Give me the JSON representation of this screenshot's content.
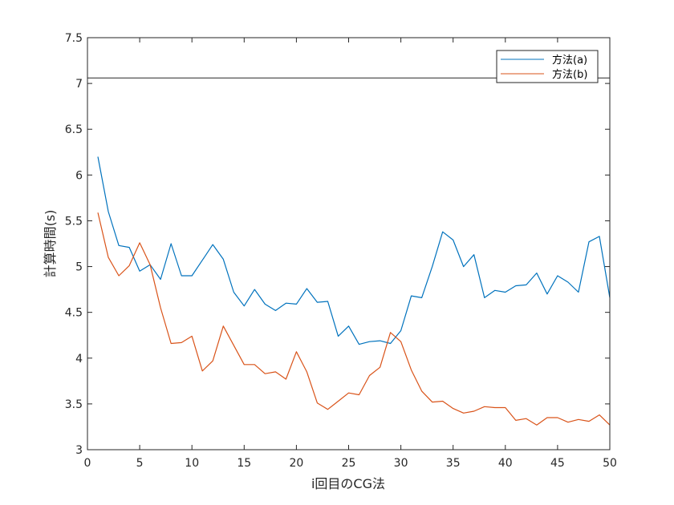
{
  "chart_data": {
    "type": "line",
    "title": "",
    "xlabel": "i回目のCG法",
    "ylabel": "計算時間(s)",
    "xlim": [
      0,
      50
    ],
    "ylim": [
      3,
      7.5
    ],
    "xticks": [
      0,
      5,
      10,
      15,
      20,
      25,
      30,
      35,
      40,
      45,
      50
    ],
    "yticks": [
      3,
      3.5,
      4,
      4.5,
      5,
      5.5,
      6,
      6.5,
      7,
      7.5
    ],
    "grid": false,
    "legend_position": "top-right",
    "x": [
      1,
      2,
      3,
      4,
      5,
      6,
      7,
      8,
      9,
      10,
      11,
      12,
      13,
      14,
      15,
      16,
      17,
      18,
      19,
      20,
      21,
      22,
      23,
      24,
      25,
      26,
      27,
      28,
      29,
      30,
      31,
      32,
      33,
      34,
      35,
      36,
      37,
      38,
      39,
      40,
      41,
      42,
      43,
      44,
      45,
      46,
      47,
      48,
      49,
      50
    ],
    "series": [
      {
        "name": "方法(a)",
        "color": "#0072BD",
        "values": [
          6.2,
          5.6,
          5.23,
          5.21,
          4.95,
          5.02,
          4.86,
          5.25,
          4.9,
          4.9,
          5.07,
          5.24,
          5.08,
          4.72,
          4.57,
          4.75,
          4.59,
          4.52,
          4.6,
          4.59,
          4.76,
          4.61,
          4.62,
          4.24,
          4.35,
          4.15,
          4.18,
          4.19,
          4.16,
          4.3,
          4.68,
          4.66,
          5.0,
          5.38,
          5.29,
          5.0,
          5.13,
          4.66,
          4.74,
          4.72,
          4.79,
          4.8,
          4.93,
          4.7,
          4.9,
          4.83,
          4.72,
          5.27,
          5.33,
          4.66
        ]
      },
      {
        "name": "方法(b)",
        "color": "#D95319",
        "values": [
          5.59,
          5.1,
          4.9,
          5.01,
          5.26,
          5.02,
          4.55,
          4.16,
          4.17,
          4.24,
          3.86,
          3.97,
          4.35,
          4.14,
          3.93,
          3.93,
          3.83,
          3.85,
          3.77,
          4.07,
          3.85,
          3.51,
          3.44,
          3.53,
          3.62,
          3.6,
          3.81,
          3.9,
          4.28,
          4.18,
          3.87,
          3.64,
          3.52,
          3.53,
          3.45,
          3.4,
          3.42,
          3.47,
          3.46,
          3.46,
          3.32,
          3.34,
          3.27,
          3.35,
          3.35,
          3.3,
          3.33,
          3.31,
          3.38,
          3.27
        ]
      }
    ],
    "reference_line": {
      "y": 7.06,
      "color": "#262626"
    }
  }
}
